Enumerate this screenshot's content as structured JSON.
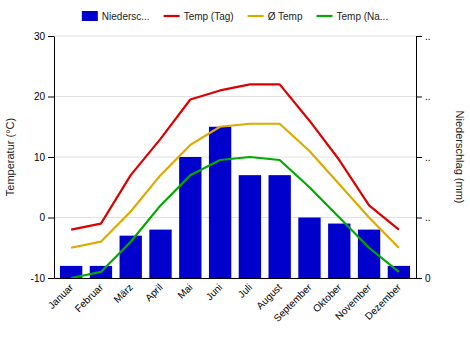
{
  "chart_data": {
    "type": "bar",
    "categories": [
      "Januar",
      "Februar",
      "März",
      "April",
      "Mai",
      "Juni",
      "Juli",
      "August",
      "September",
      "Oktober",
      "November",
      "Dezember"
    ],
    "series": [
      {
        "name": "Niedersc...",
        "type": "bar",
        "axis": "y2",
        "color": "#0000cc",
        "values": [
          2,
          2,
          7,
          8,
          20,
          25,
          17,
          17,
          10,
          9,
          8,
          2
        ]
      },
      {
        "name": "Temp (Tag)",
        "type": "line",
        "color": "#dd0000",
        "values": [
          -2,
          -1,
          7,
          13,
          19.5,
          21,
          22,
          22,
          16,
          9.5,
          2,
          -2
        ]
      },
      {
        "name": "Ø Temp",
        "type": "line",
        "color": "#ddaa00",
        "values": [
          -5,
          -4,
          1,
          7,
          12,
          15,
          15.5,
          15.5,
          11,
          5.5,
          0,
          -5
        ]
      },
      {
        "name": "Temp (Na...",
        "type": "line",
        "color": "#00aa00",
        "values": [
          -10,
          -9,
          -4,
          2,
          7,
          9.5,
          10,
          9.5,
          5,
          0,
          -5,
          -9
        ]
      }
    ],
    "ylabel": "Temperatur (°C)",
    "y2label": "Niederschlag (mm)",
    "ylim": [
      -10,
      30
    ],
    "yticks": [
      -10,
      0,
      10,
      20,
      30
    ],
    "y2lim": [
      0,
      40
    ],
    "y2ticks": [
      0,
      {
        "value": 10,
        "label": ".."
      },
      {
        "value": 20,
        "label": ".."
      },
      {
        "value": 30,
        "label": ".."
      },
      {
        "value": 40,
        "label": ".."
      }
    ],
    "grid": true,
    "legend": "top"
  }
}
